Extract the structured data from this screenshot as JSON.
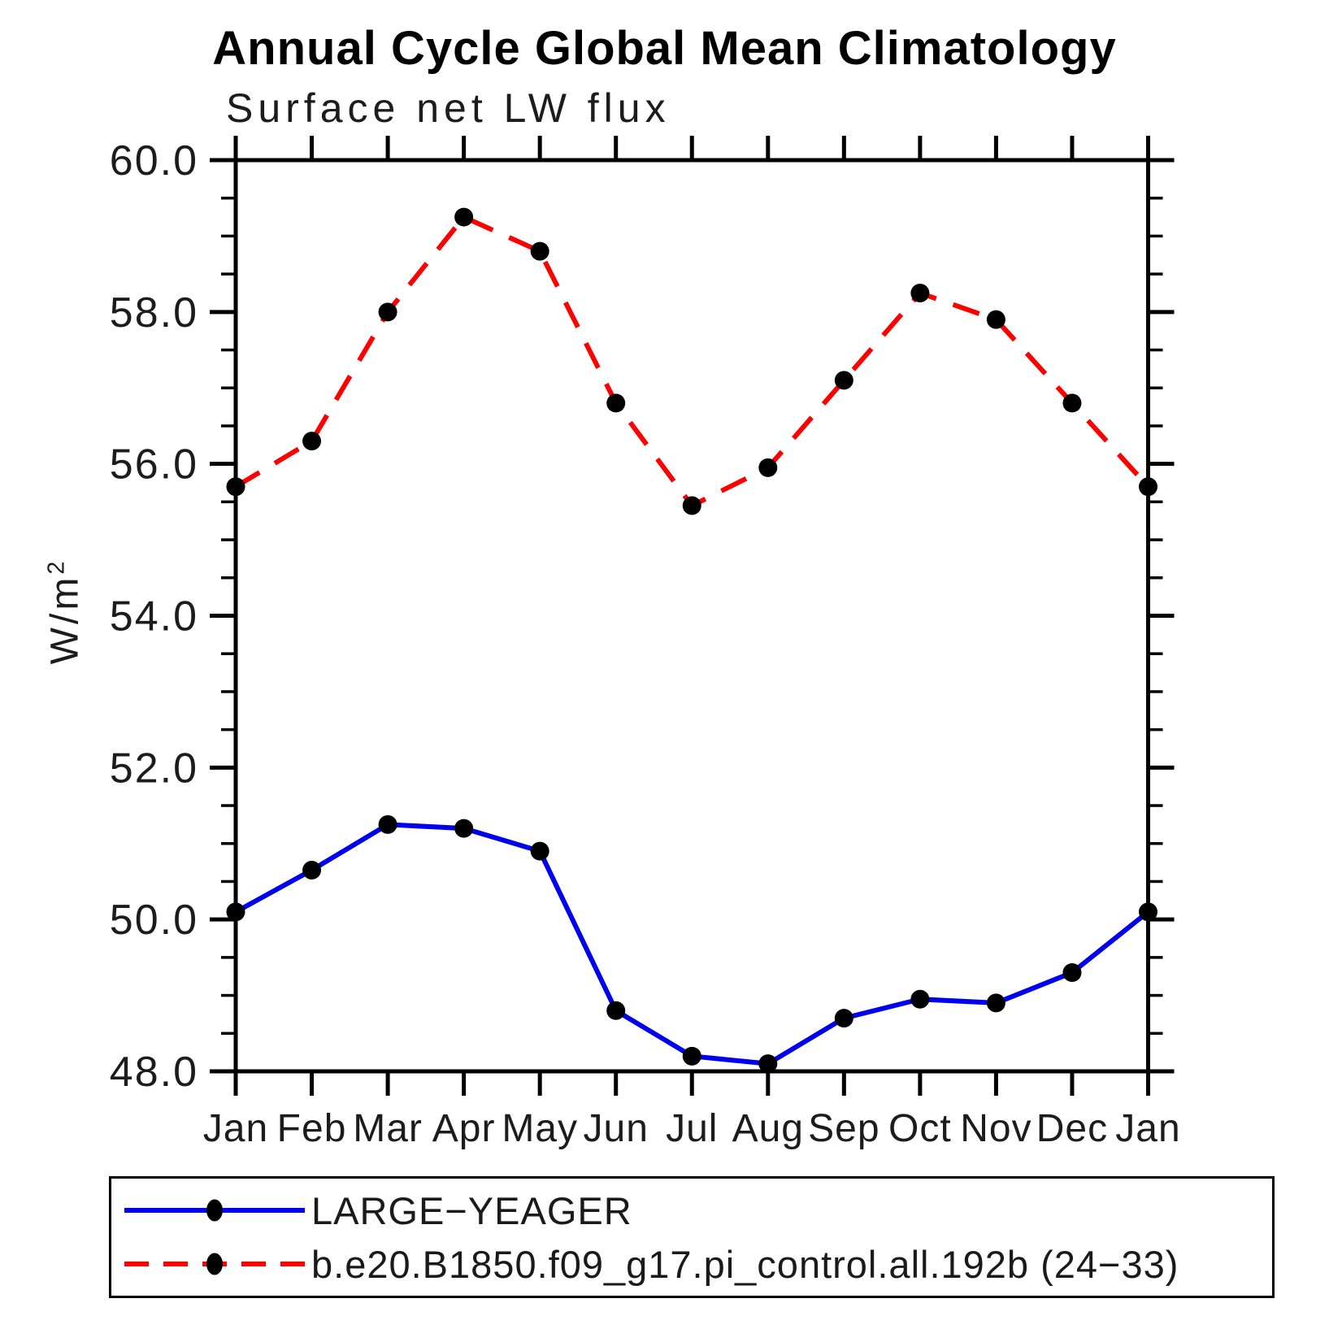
{
  "header": {
    "title": "Annual Cycle Global Mean Climatology",
    "subtitle": "Surface net LW flux"
  },
  "axes": {
    "ylabel": "W/m²",
    "ylabel_base": "W/m",
    "ylabel_sup": "2",
    "y_tick_labels": [
      "60.0",
      "58.0",
      "56.0",
      "54.0",
      "52.0",
      "50.0",
      "48.0"
    ],
    "x_tick_labels": [
      "Jan",
      "Feb",
      "Mar",
      "Apr",
      "May",
      "Jun",
      "Jul",
      "Aug",
      "Sep",
      "Oct",
      "Nov",
      "Dec",
      "Jan"
    ]
  },
  "chart_data": {
    "type": "line",
    "title": "Annual Cycle Global Mean Climatology",
    "subtitle": "Surface net LW flux",
    "xlabel": "",
    "ylabel": "W/m²",
    "ylim": [
      48.0,
      60.0
    ],
    "y_major_step": 2.0,
    "y_minor_step": 0.5,
    "grid": false,
    "legend_position": "bottom-left-box",
    "categories": [
      "Jan",
      "Feb",
      "Mar",
      "Apr",
      "May",
      "Jun",
      "Jul",
      "Aug",
      "Sep",
      "Oct",
      "Nov",
      "Dec",
      "Jan"
    ],
    "y_ticks": [
      {
        "v": 60.0,
        "label": "60.0"
      },
      {
        "v": 58.0,
        "label": "58.0"
      },
      {
        "v": 56.0,
        "label": "56.0"
      },
      {
        "v": 54.0,
        "label": "54.0"
      },
      {
        "v": 52.0,
        "label": "52.0"
      },
      {
        "v": 50.0,
        "label": "50.0"
      },
      {
        "v": 48.0,
        "label": "48.0"
      }
    ],
    "series": [
      {
        "name": "LARGE−YEAGER",
        "color": "#0000ee",
        "style": "solid",
        "marker": "circle",
        "marker_color": "#000000",
        "values": [
          50.1,
          50.65,
          51.25,
          51.2,
          50.9,
          48.8,
          48.2,
          48.1,
          48.7,
          48.95,
          48.9,
          49.3,
          50.1
        ]
      },
      {
        "name": "b.e20.B1850.f09_g17.pi_control.all.192b (24−33)",
        "color": "#ff0000",
        "style": "dashed",
        "marker": "circle",
        "marker_color": "#000000",
        "values": [
          55.7,
          56.3,
          58.0,
          59.25,
          58.8,
          56.8,
          55.45,
          55.95,
          57.1,
          58.25,
          57.9,
          56.8,
          55.7
        ]
      }
    ]
  }
}
